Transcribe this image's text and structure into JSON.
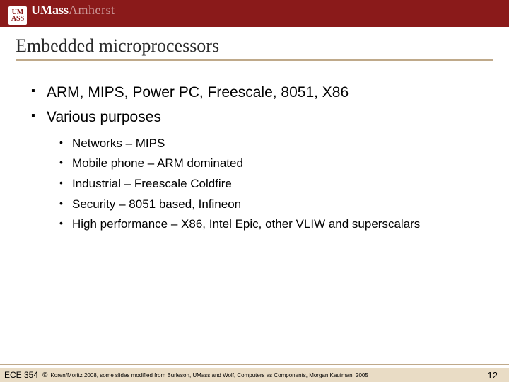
{
  "colors": {
    "header_bg": "#8a1a1a",
    "accent_line": "#bfa98a",
    "footer_bg": "#e9dcc5",
    "text": "#000000",
    "title_text": "#2b2b2b"
  },
  "typography": {
    "title_fontsize": 26,
    "level1_fontsize": 21,
    "level2_fontsize": 17,
    "footer_fontsize": 8
  },
  "logo": {
    "mark_lines": "UM\nASS",
    "text_bold": "UMass",
    "text_light": "Amherst"
  },
  "title": "Embedded microprocessors",
  "bullets": {
    "level1": [
      "ARM, MIPS, Power PC, Freescale, 8051, X86",
      "Various purposes"
    ],
    "level2": [
      "Networks – MIPS",
      "Mobile phone – ARM dominated",
      "Industrial – Freescale Coldfire",
      "Security – 8051 based, Infineon",
      "High performance – X86, Intel Epic, other VLIW and superscalars"
    ]
  },
  "footer": {
    "course": "ECE 354",
    "copyright": "©",
    "attribution": "Koren/Moritz 2008,  some slides modified from Burleson, UMass and Wolf, Computers as Components, Morgan Kaufman, 2005",
    "page": "12"
  }
}
